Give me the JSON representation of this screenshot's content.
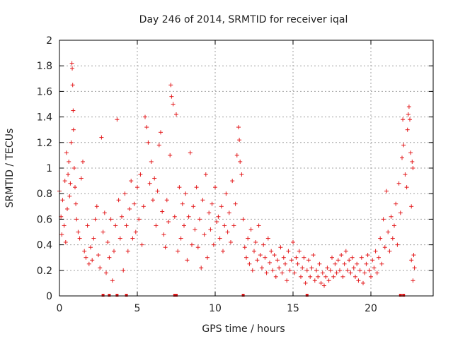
{
  "chart_data": {
    "type": "scatter",
    "title": "Day 246 of 2014, SRMTID for receiver iqal",
    "xlabel": "GPS time / hours",
    "ylabel": "SRMTID / TECUs",
    "xlim": [
      0,
      24
    ],
    "ylim": [
      0,
      2
    ],
    "xticks": [
      0,
      5,
      10,
      15,
      20
    ],
    "xtick_labels": [
      "0",
      "5",
      "10",
      "15",
      "20"
    ],
    "yticks": [
      0,
      0.2,
      0.4,
      0.6,
      0.8,
      1,
      1.2,
      1.4,
      1.6,
      1.8,
      2
    ],
    "ytick_labels": [
      "0",
      "0.2",
      "0.4",
      "0.6",
      "0.8",
      "1",
      "1.2",
      "1.4",
      "1.6",
      "1.8",
      "2"
    ],
    "grid": true,
    "marker": "+",
    "color": "#e31a1c",
    "series": [
      {
        "name": "SRMTID",
        "points": [
          [
            0.0,
            0.82
          ],
          [
            0.1,
            0.62
          ],
          [
            0.15,
            0.48
          ],
          [
            0.2,
            0.75
          ],
          [
            0.3,
            0.55
          ],
          [
            0.35,
            0.9
          ],
          [
            0.4,
            0.42
          ],
          [
            0.45,
            1.12
          ],
          [
            0.5,
            0.68
          ],
          [
            0.55,
            0.95
          ],
          [
            0.6,
            1.05
          ],
          [
            0.65,
            0.78
          ],
          [
            0.7,
            0.88
          ],
          [
            0.75,
            1.2
          ],
          [
            0.8,
            1.82
          ],
          [
            0.82,
            1.78
          ],
          [
            0.85,
            1.65
          ],
          [
            0.88,
            1.45
          ],
          [
            0.9,
            1.3
          ],
          [
            0.95,
            1.0
          ],
          [
            1.0,
            0.85
          ],
          [
            1.05,
            0.72
          ],
          [
            1.1,
            0.6
          ],
          [
            1.2,
            0.5
          ],
          [
            1.3,
            0.45
          ],
          [
            1.4,
            0.92
          ],
          [
            1.5,
            1.05
          ],
          [
            1.6,
            0.35
          ],
          [
            1.7,
            0.3
          ],
          [
            1.8,
            0.55
          ],
          [
            1.9,
            0.25
          ],
          [
            2.0,
            0.38
          ],
          [
            2.1,
            0.28
          ],
          [
            2.2,
            0.45
          ],
          [
            2.3,
            0.6
          ],
          [
            2.4,
            0.7
          ],
          [
            2.5,
            0.32
          ],
          [
            2.6,
            0.22
          ],
          [
            2.7,
            1.24
          ],
          [
            2.8,
            0.5
          ],
          [
            2.9,
            0.65
          ],
          [
            3.0,
            0.18
          ],
          [
            3.1,
            0.42
          ],
          [
            3.2,
            0.3
          ],
          [
            3.3,
            0.6
          ],
          [
            3.4,
            0.12
          ],
          [
            3.5,
            0.35
          ],
          [
            3.6,
            0.55
          ],
          [
            3.7,
            1.38
          ],
          [
            3.8,
            0.75
          ],
          [
            3.9,
            0.45
          ],
          [
            4.0,
            0.62
          ],
          [
            4.1,
            0.2
          ],
          [
            4.2,
            0.8
          ],
          [
            4.3,
            0.55
          ],
          [
            4.4,
            0.35
          ],
          [
            4.5,
            0.68
          ],
          [
            4.6,
            0.9
          ],
          [
            4.7,
            0.45
          ],
          [
            4.8,
            0.72
          ],
          [
            4.9,
            0.5
          ],
          [
            5.0,
            0.85
          ],
          [
            5.1,
            0.6
          ],
          [
            5.2,
            0.95
          ],
          [
            5.3,
            0.4
          ],
          [
            5.4,
            0.7
          ],
          [
            5.5,
            1.4
          ],
          [
            5.6,
            1.32
          ],
          [
            5.7,
            1.2
          ],
          [
            5.8,
            0.88
          ],
          [
            5.9,
            1.05
          ],
          [
            6.0,
            0.75
          ],
          [
            6.1,
            0.92
          ],
          [
            6.2,
            0.55
          ],
          [
            6.3,
            0.82
          ],
          [
            6.4,
            1.18
          ],
          [
            6.5,
            1.28
          ],
          [
            6.6,
            0.66
          ],
          [
            6.7,
            0.48
          ],
          [
            6.8,
            0.38
          ],
          [
            6.9,
            0.75
          ],
          [
            7.0,
            0.58
          ],
          [
            7.1,
            1.1
          ],
          [
            7.15,
            1.65
          ],
          [
            7.2,
            1.56
          ],
          [
            7.3,
            1.5
          ],
          [
            7.4,
            0.62
          ],
          [
            7.5,
            1.42
          ],
          [
            7.6,
            0.35
          ],
          [
            7.7,
            0.85
          ],
          [
            7.8,
            0.45
          ],
          [
            7.9,
            0.72
          ],
          [
            8.0,
            0.55
          ],
          [
            8.1,
            0.8
          ],
          [
            8.2,
            0.28
          ],
          [
            8.3,
            0.62
          ],
          [
            8.4,
            1.12
          ],
          [
            8.5,
            0.4
          ],
          [
            8.6,
            0.7
          ],
          [
            8.7,
            0.52
          ],
          [
            8.8,
            0.85
          ],
          [
            8.9,
            0.38
          ],
          [
            9.0,
            0.6
          ],
          [
            9.1,
            0.22
          ],
          [
            9.2,
            0.75
          ],
          [
            9.3,
            0.48
          ],
          [
            9.4,
            0.95
          ],
          [
            9.5,
            0.3
          ],
          [
            9.6,
            0.65
          ],
          [
            9.7,
            0.52
          ],
          [
            9.8,
            0.72
          ],
          [
            9.9,
            0.4
          ],
          [
            10.0,
            0.85
          ],
          [
            10.1,
            0.58
          ],
          [
            10.2,
            0.62
          ],
          [
            10.3,
            0.45
          ],
          [
            10.4,
            0.7
          ],
          [
            10.5,
            0.35
          ],
          [
            10.6,
            0.55
          ],
          [
            10.7,
            0.8
          ],
          [
            10.8,
            0.5
          ],
          [
            10.9,
            0.65
          ],
          [
            11.0,
            0.42
          ],
          [
            11.1,
            0.9
          ],
          [
            11.2,
            0.55
          ],
          [
            11.3,
            0.72
          ],
          [
            11.4,
            1.1
          ],
          [
            11.5,
            1.32
          ],
          [
            11.55,
            1.22
          ],
          [
            11.6,
            1.05
          ],
          [
            11.7,
            0.95
          ],
          [
            11.8,
            0.6
          ],
          [
            11.9,
            0.38
          ],
          [
            12.0,
            0.3
          ],
          [
            12.1,
            0.45
          ],
          [
            12.2,
            0.25
          ],
          [
            12.3,
            0.52
          ],
          [
            12.4,
            0.2
          ],
          [
            12.5,
            0.35
          ],
          [
            12.6,
            0.42
          ],
          [
            12.7,
            0.28
          ],
          [
            12.8,
            0.55
          ],
          [
            12.9,
            0.32
          ],
          [
            13.0,
            0.22
          ],
          [
            13.1,
            0.4
          ],
          [
            13.2,
            0.3
          ],
          [
            13.3,
            0.18
          ],
          [
            13.4,
            0.45
          ],
          [
            13.5,
            0.26
          ],
          [
            13.6,
            0.35
          ],
          [
            13.7,
            0.2
          ],
          [
            13.8,
            0.32
          ],
          [
            13.9,
            0.15
          ],
          [
            14.0,
            0.28
          ],
          [
            14.1,
            0.22
          ],
          [
            14.2,
            0.38
          ],
          [
            14.3,
            0.18
          ],
          [
            14.4,
            0.3
          ],
          [
            14.5,
            0.25
          ],
          [
            14.6,
            0.12
          ],
          [
            14.7,
            0.35
          ],
          [
            14.8,
            0.2
          ],
          [
            14.9,
            0.28
          ],
          [
            15.0,
            0.42
          ],
          [
            15.1,
            0.18
          ],
          [
            15.2,
            0.3
          ],
          [
            15.3,
            0.25
          ],
          [
            15.4,
            0.35
          ],
          [
            15.5,
            0.15
          ],
          [
            15.6,
            0.22
          ],
          [
            15.7,
            0.3
          ],
          [
            15.8,
            0.1
          ],
          [
            15.9,
            0.2
          ],
          [
            16.0,
            0.28
          ],
          [
            16.1,
            0.15
          ],
          [
            16.2,
            0.22
          ],
          [
            16.3,
            0.32
          ],
          [
            16.4,
            0.12
          ],
          [
            16.5,
            0.2
          ],
          [
            16.6,
            0.15
          ],
          [
            16.7,
            0.25
          ],
          [
            16.8,
            0.1
          ],
          [
            16.9,
            0.18
          ],
          [
            17.0,
            0.08
          ],
          [
            17.1,
            0.15
          ],
          [
            17.2,
            0.22
          ],
          [
            17.3,
            0.12
          ],
          [
            17.4,
            0.2
          ],
          [
            17.5,
            0.3
          ],
          [
            17.6,
            0.15
          ],
          [
            17.7,
            0.25
          ],
          [
            17.8,
            0.18
          ],
          [
            17.9,
            0.28
          ],
          [
            18.0,
            0.2
          ],
          [
            18.1,
            0.32
          ],
          [
            18.2,
            0.15
          ],
          [
            18.3,
            0.25
          ],
          [
            18.4,
            0.35
          ],
          [
            18.5,
            0.2
          ],
          [
            18.6,
            0.28
          ],
          [
            18.7,
            0.18
          ],
          [
            18.8,
            0.3
          ],
          [
            18.9,
            0.22
          ],
          [
            19.0,
            0.15
          ],
          [
            19.1,
            0.25
          ],
          [
            19.2,
            0.12
          ],
          [
            19.3,
            0.2
          ],
          [
            19.4,
            0.3
          ],
          [
            19.5,
            0.1
          ],
          [
            19.6,
            0.18
          ],
          [
            19.7,
            0.25
          ],
          [
            19.8,
            0.32
          ],
          [
            19.9,
            0.2
          ],
          [
            20.0,
            0.15
          ],
          [
            20.1,
            0.28
          ],
          [
            20.2,
            0.22
          ],
          [
            20.3,
            0.35
          ],
          [
            20.4,
            0.18
          ],
          [
            20.5,
            0.3
          ],
          [
            20.6,
            0.45
          ],
          [
            20.7,
            0.25
          ],
          [
            20.8,
            0.6
          ],
          [
            20.9,
            0.38
          ],
          [
            21.0,
            0.82
          ],
          [
            21.1,
            0.5
          ],
          [
            21.2,
            0.35
          ],
          [
            21.3,
            0.62
          ],
          [
            21.4,
            0.45
          ],
          [
            21.5,
            0.55
          ],
          [
            21.6,
            0.72
          ],
          [
            21.7,
            0.4
          ],
          [
            21.8,
            0.88
          ],
          [
            21.9,
            0.65
          ],
          [
            22.0,
            1.08
          ],
          [
            22.05,
            1.38
          ],
          [
            22.1,
            1.18
          ],
          [
            22.2,
            0.95
          ],
          [
            22.3,
            0.85
          ],
          [
            22.35,
            1.3
          ],
          [
            22.4,
            1.42
          ],
          [
            22.45,
            1.48
          ],
          [
            22.5,
            1.38
          ],
          [
            22.55,
            1.12
          ],
          [
            22.6,
            0.7
          ],
          [
            22.65,
            1.05
          ],
          [
            22.7,
            1.0
          ],
          [
            22.75,
            0.32
          ],
          [
            22.8,
            0.22
          ],
          [
            22.7,
            0.12
          ],
          [
            22.6,
            0.28
          ]
        ]
      }
    ],
    "zero_markers_x": [
      2.8,
      3.2,
      3.7,
      4.3,
      7.4,
      7.5,
      11.8,
      15.9,
      21.9,
      22.1
    ]
  }
}
